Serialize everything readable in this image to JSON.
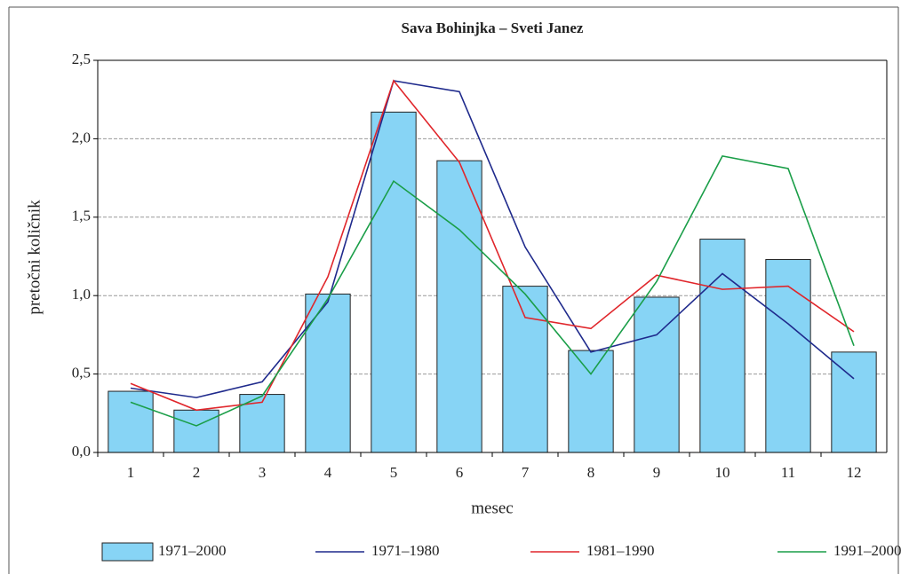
{
  "chart_data": {
    "type": "bar",
    "title": "Sava Bohinjka – Sveti Janez",
    "x_label": "mesec",
    "y_label": "pretočni količnik",
    "categories": [
      "1",
      "2",
      "3",
      "4",
      "5",
      "6",
      "7",
      "8",
      "9",
      "10",
      "11",
      "12"
    ],
    "series": [
      {
        "name": "1971–2000",
        "type": "bar",
        "color": "#87d4f5",
        "values": [
          0.39,
          0.27,
          0.37,
          1.01,
          2.17,
          1.86,
          1.06,
          0.65,
          0.99,
          1.36,
          1.23,
          0.64
        ]
      },
      {
        "name": "1971–1980",
        "type": "line",
        "color": "#1f2a8c",
        "values": [
          0.41,
          0.35,
          0.45,
          0.96,
          2.37,
          2.3,
          1.31,
          0.64,
          0.75,
          1.14,
          0.82,
          0.47
        ]
      },
      {
        "name": "1981–1990",
        "type": "line",
        "color": "#e0262b",
        "values": [
          0.44,
          0.27,
          0.32,
          1.12,
          2.37,
          1.85,
          0.86,
          0.79,
          1.13,
          1.04,
          1.06,
          0.77
        ]
      },
      {
        "name": "1991–2000",
        "type": "line",
        "color": "#1a9e48",
        "values": [
          0.32,
          0.17,
          0.36,
          0.98,
          1.73,
          1.42,
          1.01,
          0.5,
          1.09,
          1.89,
          1.81,
          0.68
        ]
      }
    ],
    "ylim": [
      0,
      2.5
    ],
    "yticks": [
      {
        "value": 0,
        "label": "0,0"
      },
      {
        "value": 0.5,
        "label": "0,5"
      },
      {
        "value": 1,
        "label": "1,0"
      },
      {
        "value": 1.5,
        "label": "1,5"
      },
      {
        "value": 2,
        "label": "2,0"
      },
      {
        "value": 2.5,
        "label": "2,5"
      }
    ],
    "grid": true,
    "legend": "bottom"
  }
}
